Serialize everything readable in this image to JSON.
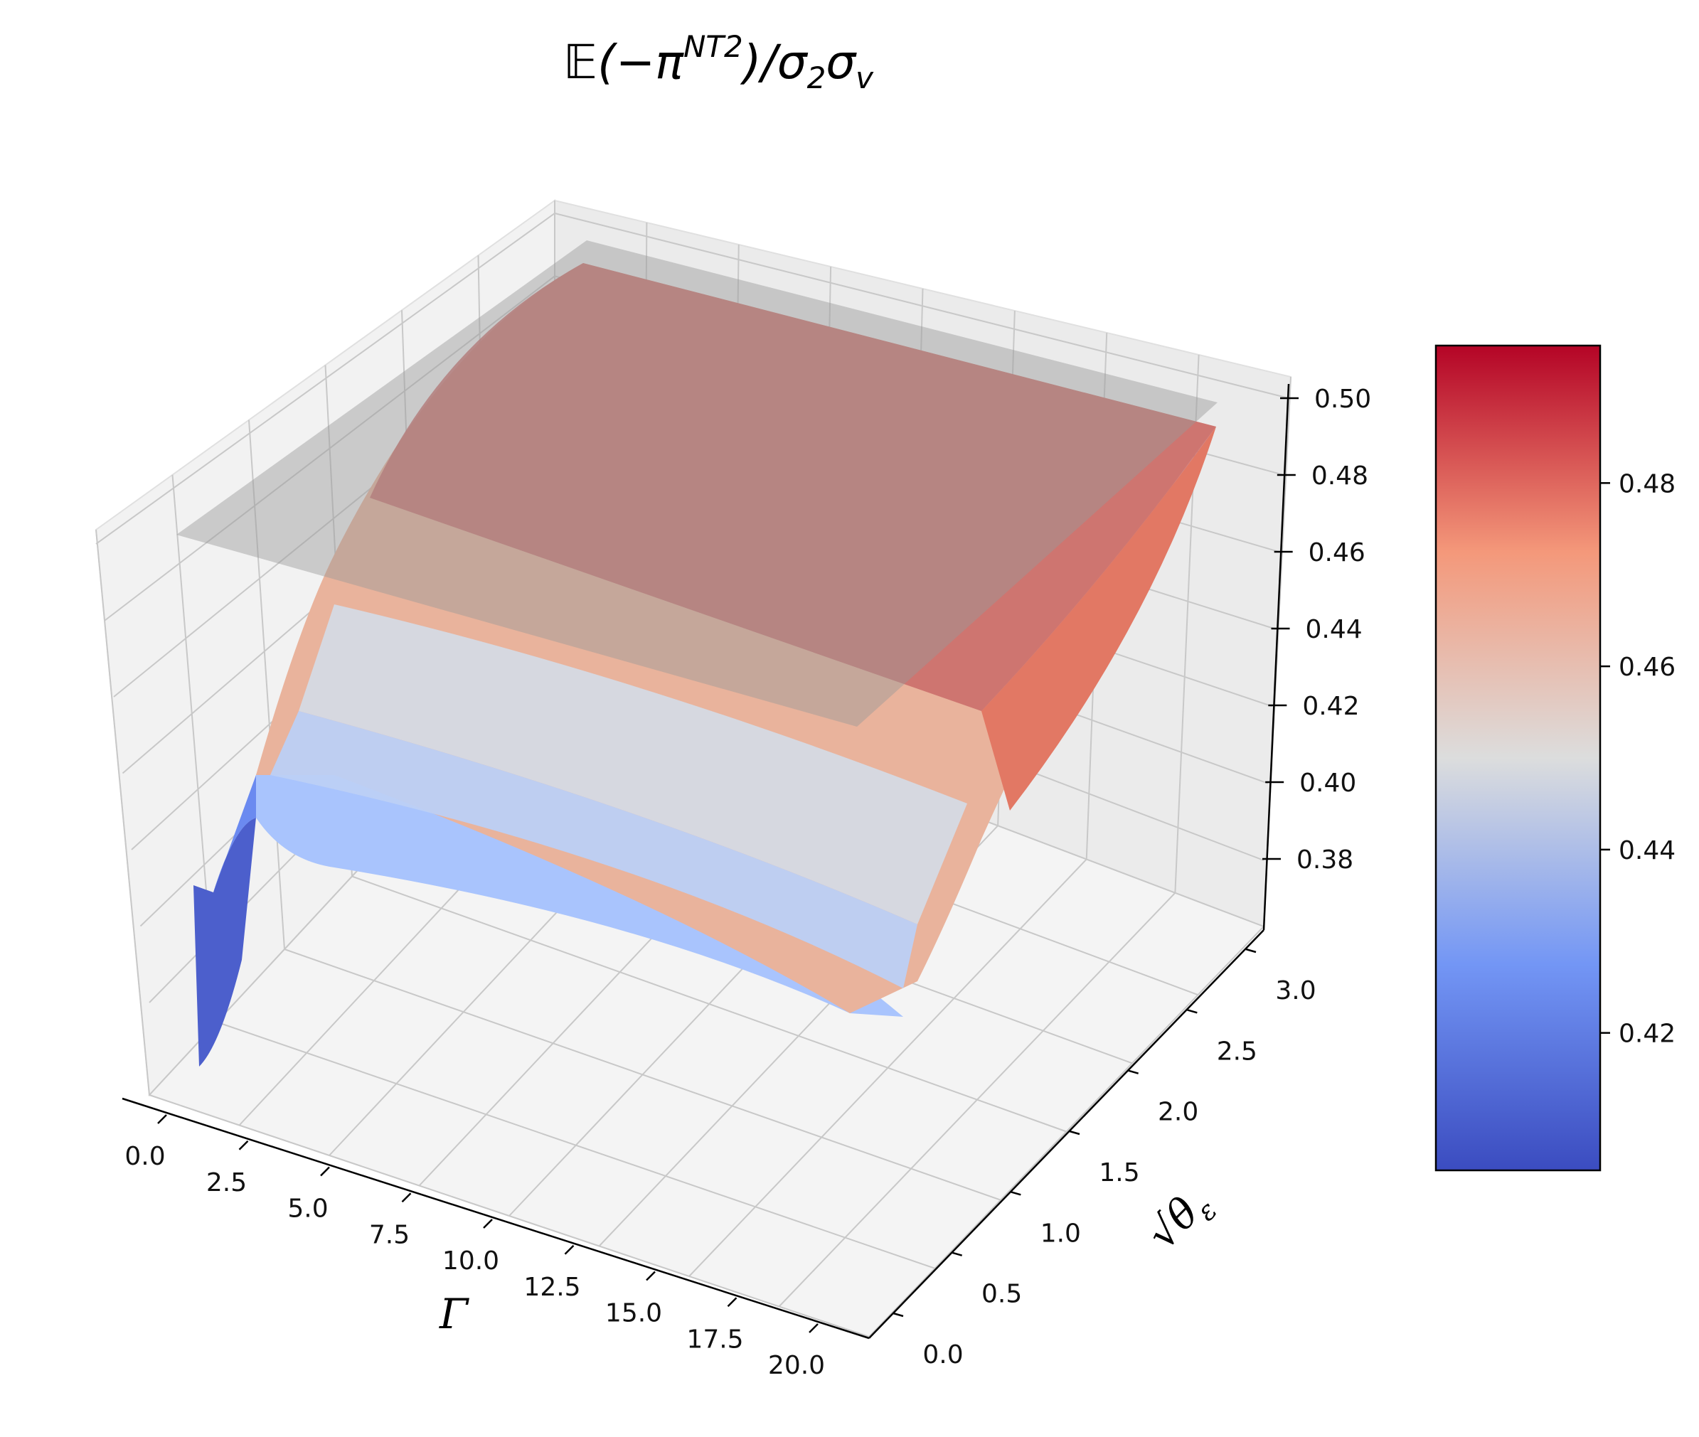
{
  "chart_data": {
    "type": "surface3d",
    "title": "𝔼(−π^{NT2})/σ₂σᵥ",
    "title_parts": {
      "main": "𝔼(−π",
      "sup": "NT2",
      "tail": ")/σ",
      "sub1": "2",
      "mid": "σ",
      "sub2": "v"
    },
    "xlabel": "Γ",
    "ylabel": "√θε",
    "ylabel_parts": {
      "root": "√",
      "theta": "θ",
      "sub": "ε"
    },
    "zlabel": "",
    "x_ticks": [
      "0.0",
      "2.5",
      "5.0",
      "7.5",
      "10.0",
      "12.5",
      "15.0",
      "17.5",
      "20.0"
    ],
    "y_ticks": [
      "0.0",
      "0.5",
      "1.0",
      "1.5",
      "2.0",
      "2.5",
      "3.0"
    ],
    "z_ticks": [
      "0.38",
      "0.40",
      "0.42",
      "0.44",
      "0.46",
      "0.48",
      "0.50"
    ],
    "xlim": [
      -1,
      21
    ],
    "ylim": [
      0,
      3.2
    ],
    "zlim": [
      0.365,
      0.505
    ],
    "plane_level": 0.5,
    "colormap": "coolwarm",
    "colorbar": {
      "ticks": [
        "0.42",
        "0.44",
        "0.46",
        "0.48"
      ],
      "range": [
        0.405,
        0.495
      ]
    },
    "surface_samples": {
      "gamma": [
        0.5,
        1,
        1.5,
        2,
        3,
        5,
        10,
        15,
        20
      ],
      "sqrt_theta_eps": [
        0,
        0.5,
        1.0,
        1.5,
        2.0,
        2.5,
        3.0
      ],
      "note_values_at_gamma_20": [
        0.41,
        0.419,
        0.434,
        0.452,
        0.47,
        0.485,
        0.495
      ]
    },
    "grid": true
  }
}
